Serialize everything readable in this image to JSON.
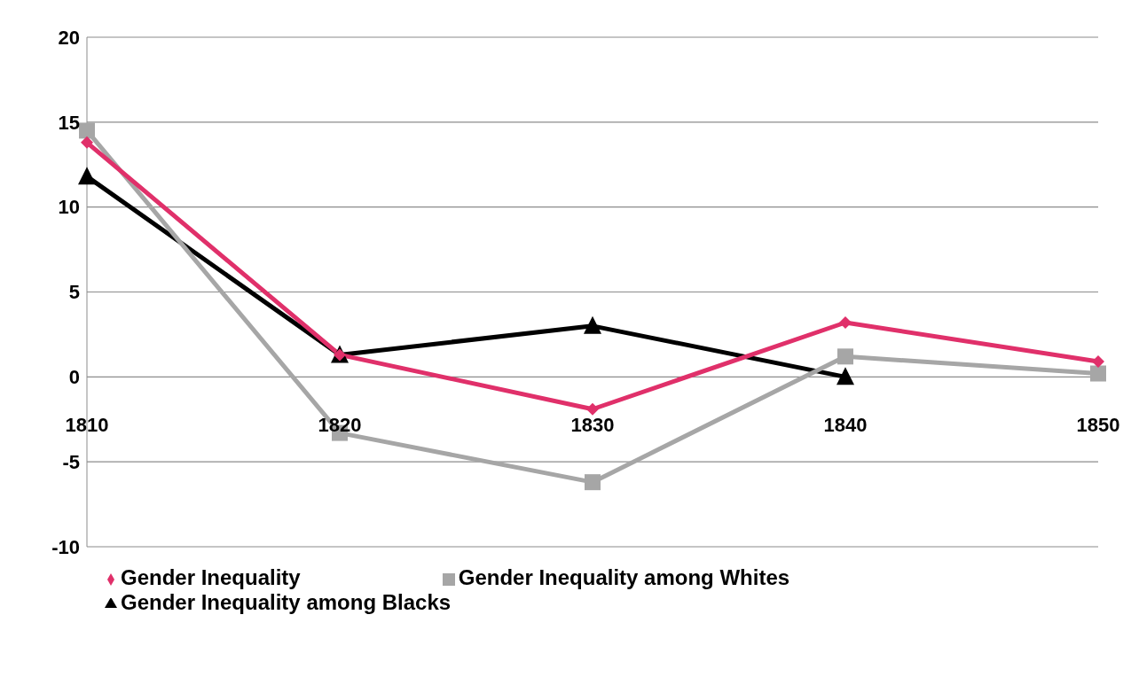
{
  "chart_data": {
    "type": "line",
    "categories": [
      "1810",
      "1820",
      "1830",
      "1840",
      "1850"
    ],
    "series": [
      {
        "name": "Gender Inequality",
        "color": "#e0306a",
        "marker": "diamond",
        "values": [
          13.8,
          1.3,
          -1.9,
          3.2,
          0.9
        ]
      },
      {
        "name": "Gender Inequality among Whites",
        "color": "#a6a6a6",
        "marker": "square",
        "values": [
          14.5,
          -3.3,
          -6.2,
          1.2,
          0.2
        ]
      },
      {
        "name": "Gender Inequality among Blacks",
        "color": "#000000",
        "marker": "triangle",
        "values": [
          11.8,
          1.3,
          3.0,
          0.0,
          null
        ]
      }
    ],
    "ylim": [
      -10,
      20
    ],
    "yticks": [
      -10,
      -5,
      0,
      5,
      10,
      15,
      20
    ],
    "grid": "y",
    "legend": "bottom",
    "line_style": "solid"
  }
}
